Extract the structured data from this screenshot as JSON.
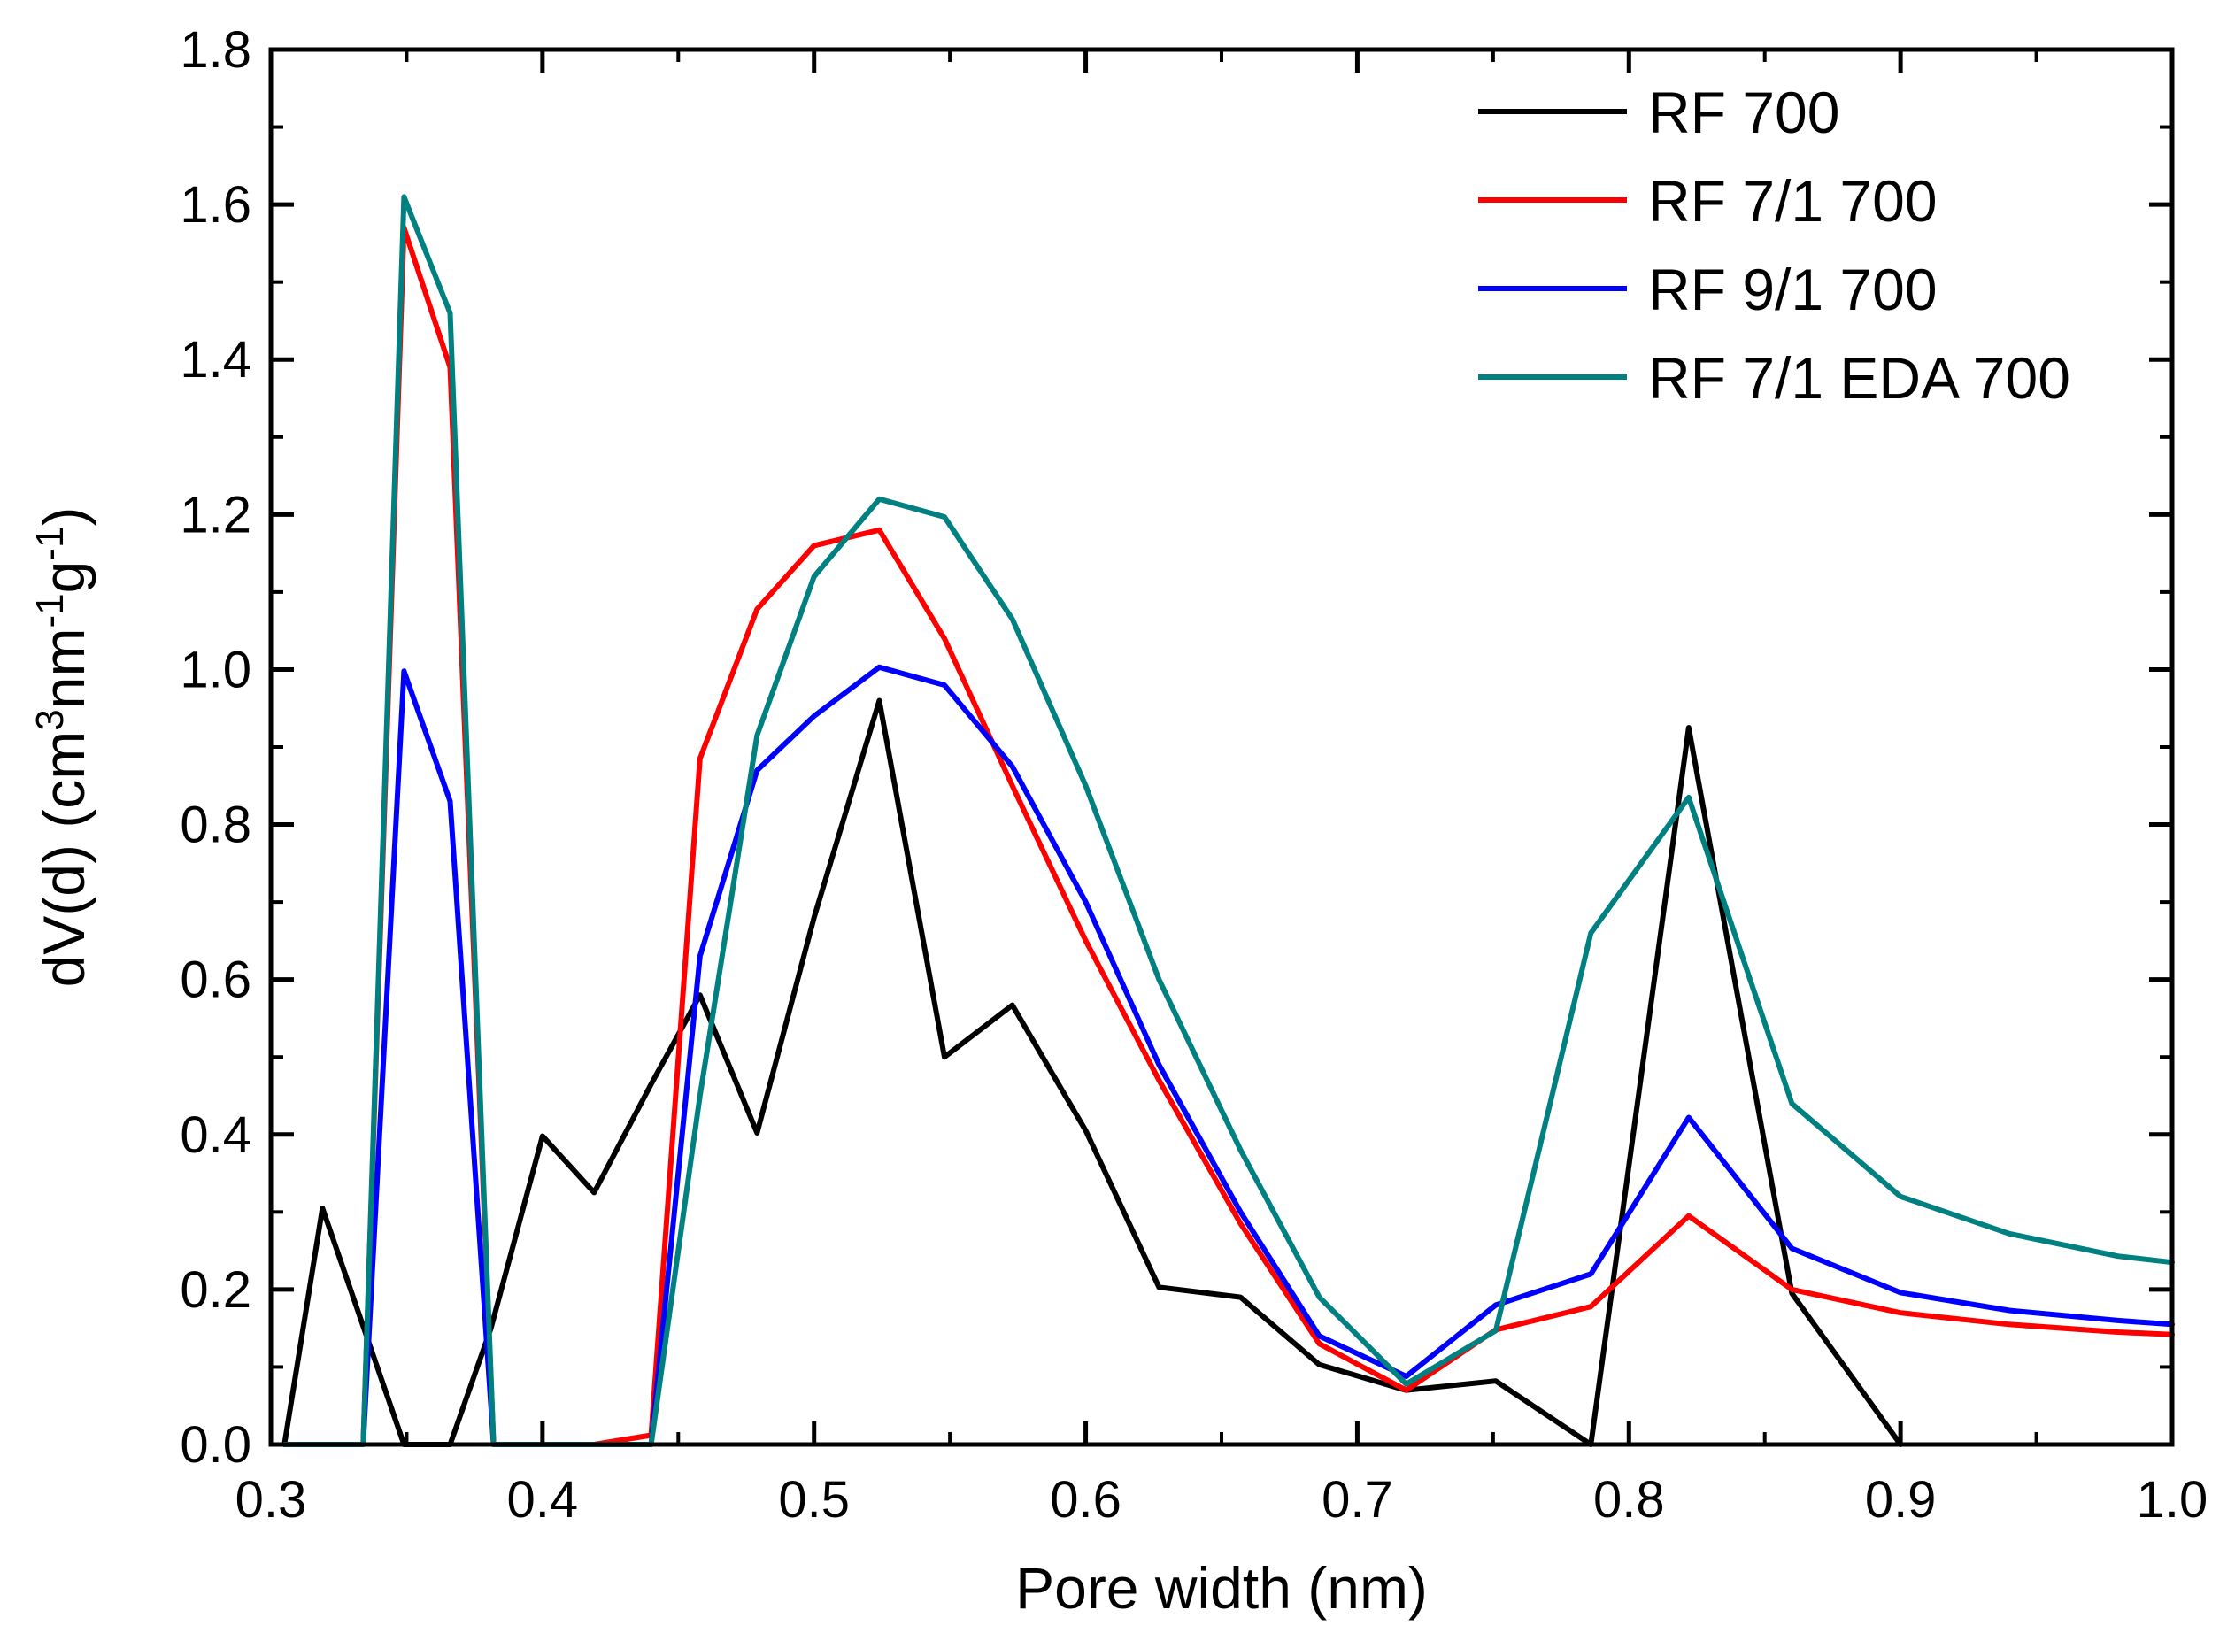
{
  "chart_data": {
    "type": "line",
    "title": "",
    "xlabel": "Pore width (nm)",
    "ylabel": {
      "main": "dV(d) (cm",
      "sup1": "3",
      "mid1": "nm",
      "sup2": "-1",
      "mid2": "g",
      "sup3": "-1",
      "end": ")"
    },
    "xlim": [
      0.3,
      1.0
    ],
    "ylim": [
      0.0,
      1.8
    ],
    "x_ticks": [
      0.3,
      0.4,
      0.5,
      0.6,
      0.7,
      0.8,
      0.9,
      1.0
    ],
    "x_tick_labels": [
      "0.3",
      "0.4",
      "0.5",
      "0.6",
      "0.7",
      "0.8",
      "0.9",
      "1.0"
    ],
    "y_ticks": [
      0.0,
      0.2,
      0.4,
      0.6,
      0.8,
      1.0,
      1.2,
      1.4,
      1.6,
      1.8
    ],
    "y_tick_labels": [
      "0.0",
      "0.2",
      "0.4",
      "0.6",
      "0.8",
      "1.0",
      "1.2",
      "1.4",
      "1.6",
      "1.8"
    ],
    "legend_position": "top-right",
    "series": [
      {
        "name": "RF 700",
        "color": "#000000",
        "points": [
          [
            0.305,
            0.0
          ],
          [
            0.319,
            0.305
          ],
          [
            0.349,
            0.0
          ],
          [
            0.366,
            0.0
          ],
          [
            0.381,
            0.15
          ],
          [
            0.4,
            0.398
          ],
          [
            0.419,
            0.325
          ],
          [
            0.44,
            0.465
          ],
          [
            0.458,
            0.58
          ],
          [
            0.479,
            0.402
          ],
          [
            0.5,
            0.68
          ],
          [
            0.524,
            0.96
          ],
          [
            0.548,
            0.5
          ],
          [
            0.573,
            0.567
          ],
          [
            0.6,
            0.405
          ],
          [
            0.627,
            0.203
          ],
          [
            0.657,
            0.19
          ],
          [
            0.686,
            0.103
          ],
          [
            0.718,
            0.07
          ],
          [
            0.751,
            0.082
          ],
          [
            0.786,
            0.0
          ],
          [
            0.822,
            0.925
          ],
          [
            0.86,
            0.195
          ],
          [
            0.9,
            0.0
          ]
        ]
      },
      {
        "name": "RF 7/1 700",
        "color": "#ff0000",
        "points": [
          [
            0.305,
            0.0
          ],
          [
            0.334,
            0.0
          ],
          [
            0.349,
            1.57
          ],
          [
            0.366,
            1.39
          ],
          [
            0.382,
            0.0
          ],
          [
            0.4,
            0.0
          ],
          [
            0.419,
            0.0
          ],
          [
            0.44,
            0.012
          ],
          [
            0.458,
            0.885
          ],
          [
            0.479,
            1.078
          ],
          [
            0.5,
            1.16
          ],
          [
            0.524,
            1.18
          ],
          [
            0.548,
            1.04
          ],
          [
            0.573,
            0.85
          ],
          [
            0.6,
            0.65
          ],
          [
            0.627,
            0.47
          ],
          [
            0.657,
            0.285
          ],
          [
            0.686,
            0.13
          ],
          [
            0.718,
            0.07
          ],
          [
            0.751,
            0.148
          ],
          [
            0.786,
            0.178
          ],
          [
            0.822,
            0.295
          ],
          [
            0.86,
            0.2
          ],
          [
            0.9,
            0.17
          ],
          [
            0.94,
            0.155
          ],
          [
            0.98,
            0.145
          ],
          [
            1.0,
            0.142
          ]
        ]
      },
      {
        "name": "RF 9/1 700",
        "color": "#0000ff",
        "points": [
          [
            0.305,
            0.0
          ],
          [
            0.334,
            0.0
          ],
          [
            0.349,
            0.998
          ],
          [
            0.366,
            0.83
          ],
          [
            0.382,
            0.0
          ],
          [
            0.4,
            0.0
          ],
          [
            0.419,
            0.0
          ],
          [
            0.44,
            0.0
          ],
          [
            0.458,
            0.63
          ],
          [
            0.479,
            0.87
          ],
          [
            0.5,
            0.94
          ],
          [
            0.524,
            1.003
          ],
          [
            0.548,
            0.98
          ],
          [
            0.573,
            0.875
          ],
          [
            0.6,
            0.7
          ],
          [
            0.627,
            0.49
          ],
          [
            0.657,
            0.3
          ],
          [
            0.686,
            0.14
          ],
          [
            0.718,
            0.088
          ],
          [
            0.751,
            0.18
          ],
          [
            0.786,
            0.22
          ],
          [
            0.822,
            0.422
          ],
          [
            0.86,
            0.253
          ],
          [
            0.9,
            0.196
          ],
          [
            0.94,
            0.173
          ],
          [
            0.98,
            0.16
          ],
          [
            1.0,
            0.155
          ]
        ]
      },
      {
        "name": "RF 7/1 EDA 700",
        "color": "#008080",
        "points": [
          [
            0.305,
            0.0
          ],
          [
            0.334,
            0.0
          ],
          [
            0.349,
            1.61
          ],
          [
            0.366,
            1.46
          ],
          [
            0.382,
            0.0
          ],
          [
            0.4,
            0.0
          ],
          [
            0.419,
            0.0
          ],
          [
            0.44,
            0.0
          ],
          [
            0.458,
            0.45
          ],
          [
            0.479,
            0.915
          ],
          [
            0.5,
            1.12
          ],
          [
            0.524,
            1.22
          ],
          [
            0.548,
            1.197
          ],
          [
            0.573,
            1.065
          ],
          [
            0.6,
            0.85
          ],
          [
            0.627,
            0.6
          ],
          [
            0.657,
            0.38
          ],
          [
            0.686,
            0.19
          ],
          [
            0.718,
            0.078
          ],
          [
            0.751,
            0.147
          ],
          [
            0.786,
            0.66
          ],
          [
            0.822,
            0.835
          ],
          [
            0.86,
            0.44
          ],
          [
            0.9,
            0.32
          ],
          [
            0.94,
            0.272
          ],
          [
            0.98,
            0.243
          ],
          [
            1.0,
            0.235
          ]
        ]
      }
    ]
  }
}
